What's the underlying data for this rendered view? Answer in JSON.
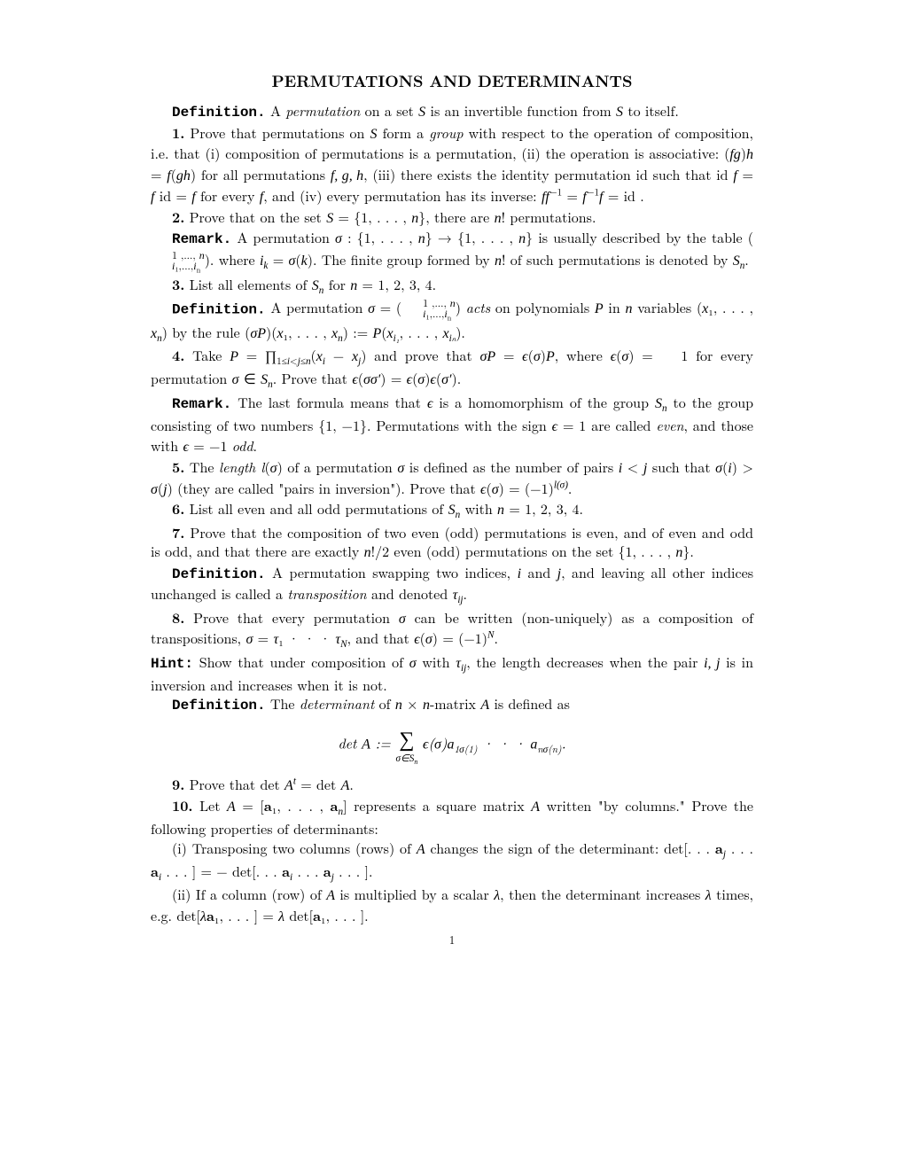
{
  "title": "PERMUTATIONS AND DETERMINANTS",
  "def1_label": "Definition.",
  "def1_text": " A permutation on a set S is an invertible function from S to itself.",
  "p1_num": "1.",
  "p1_text": " Prove that permutations on S form a group with respect to the operation of composition, i.e. that (i) composition of permutations is a permutation, (ii) the operation is associative: (fg)h = f(gh) for all permutations f, g, h, (iii) there exists the identity permutation id such that id f = f id = f for every f, and (iv) every permutation has its inverse: ff⁻¹ = f⁻¹f = id .",
  "p2_num": "2.",
  "p2_text": " Prove that on the set S = {1, . . . , n}, there are n! permutations.",
  "rem1_label": "Remark.",
  "rem1_text_a": " A permutation σ : {1, . . . , n} → {1, . . . , n} is usually described by the table ",
  "rem1_text_b": ". where iₖ = σ(k). The finite group formed by n! of such permutations is denoted by Sₙ.",
  "p3_num": "3.",
  "p3_text": " List all elements of Sₙ for n = 1, 2, 3, 4.",
  "def2_label": "Definition.",
  "def2_text_a": " A permutation σ = ",
  "def2_text_b": " acts on polynomials P in n variables (x₁, . . . , xₙ) by the rule (σP)(x₁, . . . , xₙ) := P(x",
  "def2_text_c": ", . . . , x",
  "def2_text_d": ").",
  "p4_num": "4.",
  "p4_text": " Take P = ∏₁≤ᵢ<ⱼ≤ₙ(xᵢ − xⱼ) and prove that σP = ϵ(σ)P, where ϵ(σ) = ±1 for every permutation σ ∈ Sₙ. Prove that ϵ(σσ′) = ϵ(σ)ϵ(σ′).",
  "rem2_label": "Remark.",
  "rem2_text": " The last formula means that ϵ is a homomorphism of the group Sₙ to the group consisting of two numbers {1, −1}. Permutations with the sign ϵ = 1 are called even, and those with ϵ = −1 odd.",
  "p5_num": "5.",
  "p5_text": " The length l(σ) of a permutation σ is defined as the number of pairs i < j such that σ(i) > σ(j) (they are called \"pairs in inversion\"). Prove that ϵ(σ) = (−1)",
  "p5_exp": "l(σ)",
  "p5_end": ".",
  "p6_num": "6.",
  "p6_text": " List all even and all odd permutations of Sₙ with n = 1, 2, 3, 4.",
  "p7_num": "7.",
  "p7_text": " Prove that the composition of two even (odd) permutations is even, and of even and odd is odd, and that there are exactly n!/2 even (odd) permutations on the set {1, . . . , n}.",
  "def3_label": "Definition.",
  "def3_text": " A permutation swapping two indices, i and j, and leaving all other indices unchanged is called a transposition and denoted τᵢⱼ.",
  "p8_num": "8.",
  "p8_text": " Prove that every permutation σ can be written (non-uniquely) as a composition of transpositions, σ = τ₁ · · · τ_N, and that ϵ(σ) = (−1)ᴺ.",
  "hint_label": "Hint:",
  "hint_text": " Show that under composition of σ with τᵢⱼ, the length decreases when the pair i, j is in inversion and increases when it is not.",
  "def4_label": "Definition.",
  "def4_text": " The determinant of n × n-matrix A is defined as",
  "det_formula_lhs": "det A := ",
  "det_formula_sum": "∑",
  "det_formula_sub": "σ∈Sₙ",
  "det_formula_rhs": " ϵ(σ)a₁σ(1) · · · a",
  "det_formula_rhs2": "nσ(n)",
  "det_formula_end": ".",
  "p9_num": "9.",
  "p9_text": " Prove that det Aᵗ = det A.",
  "p10_num": "10.",
  "p10_text": " Let A = [a₁, . . . , aₙ] represents a square matrix A written \"by columns.\" Prove the following properties of determinants:",
  "p10i": "(i) Transposing two columns (rows) of A changes the sign of the determinant: det[. . . aⱼ . . . aᵢ . . . ] = − det[. . . aᵢ . . . aⱼ . . . ].",
  "p10ii": "(ii) If a column (row) of A is multiplied by a scalar λ, then the determinant increases λ times, e.g. det[λa₁, . . . ] = λ det[a₁, . . . ].",
  "pagenum": "1"
}
